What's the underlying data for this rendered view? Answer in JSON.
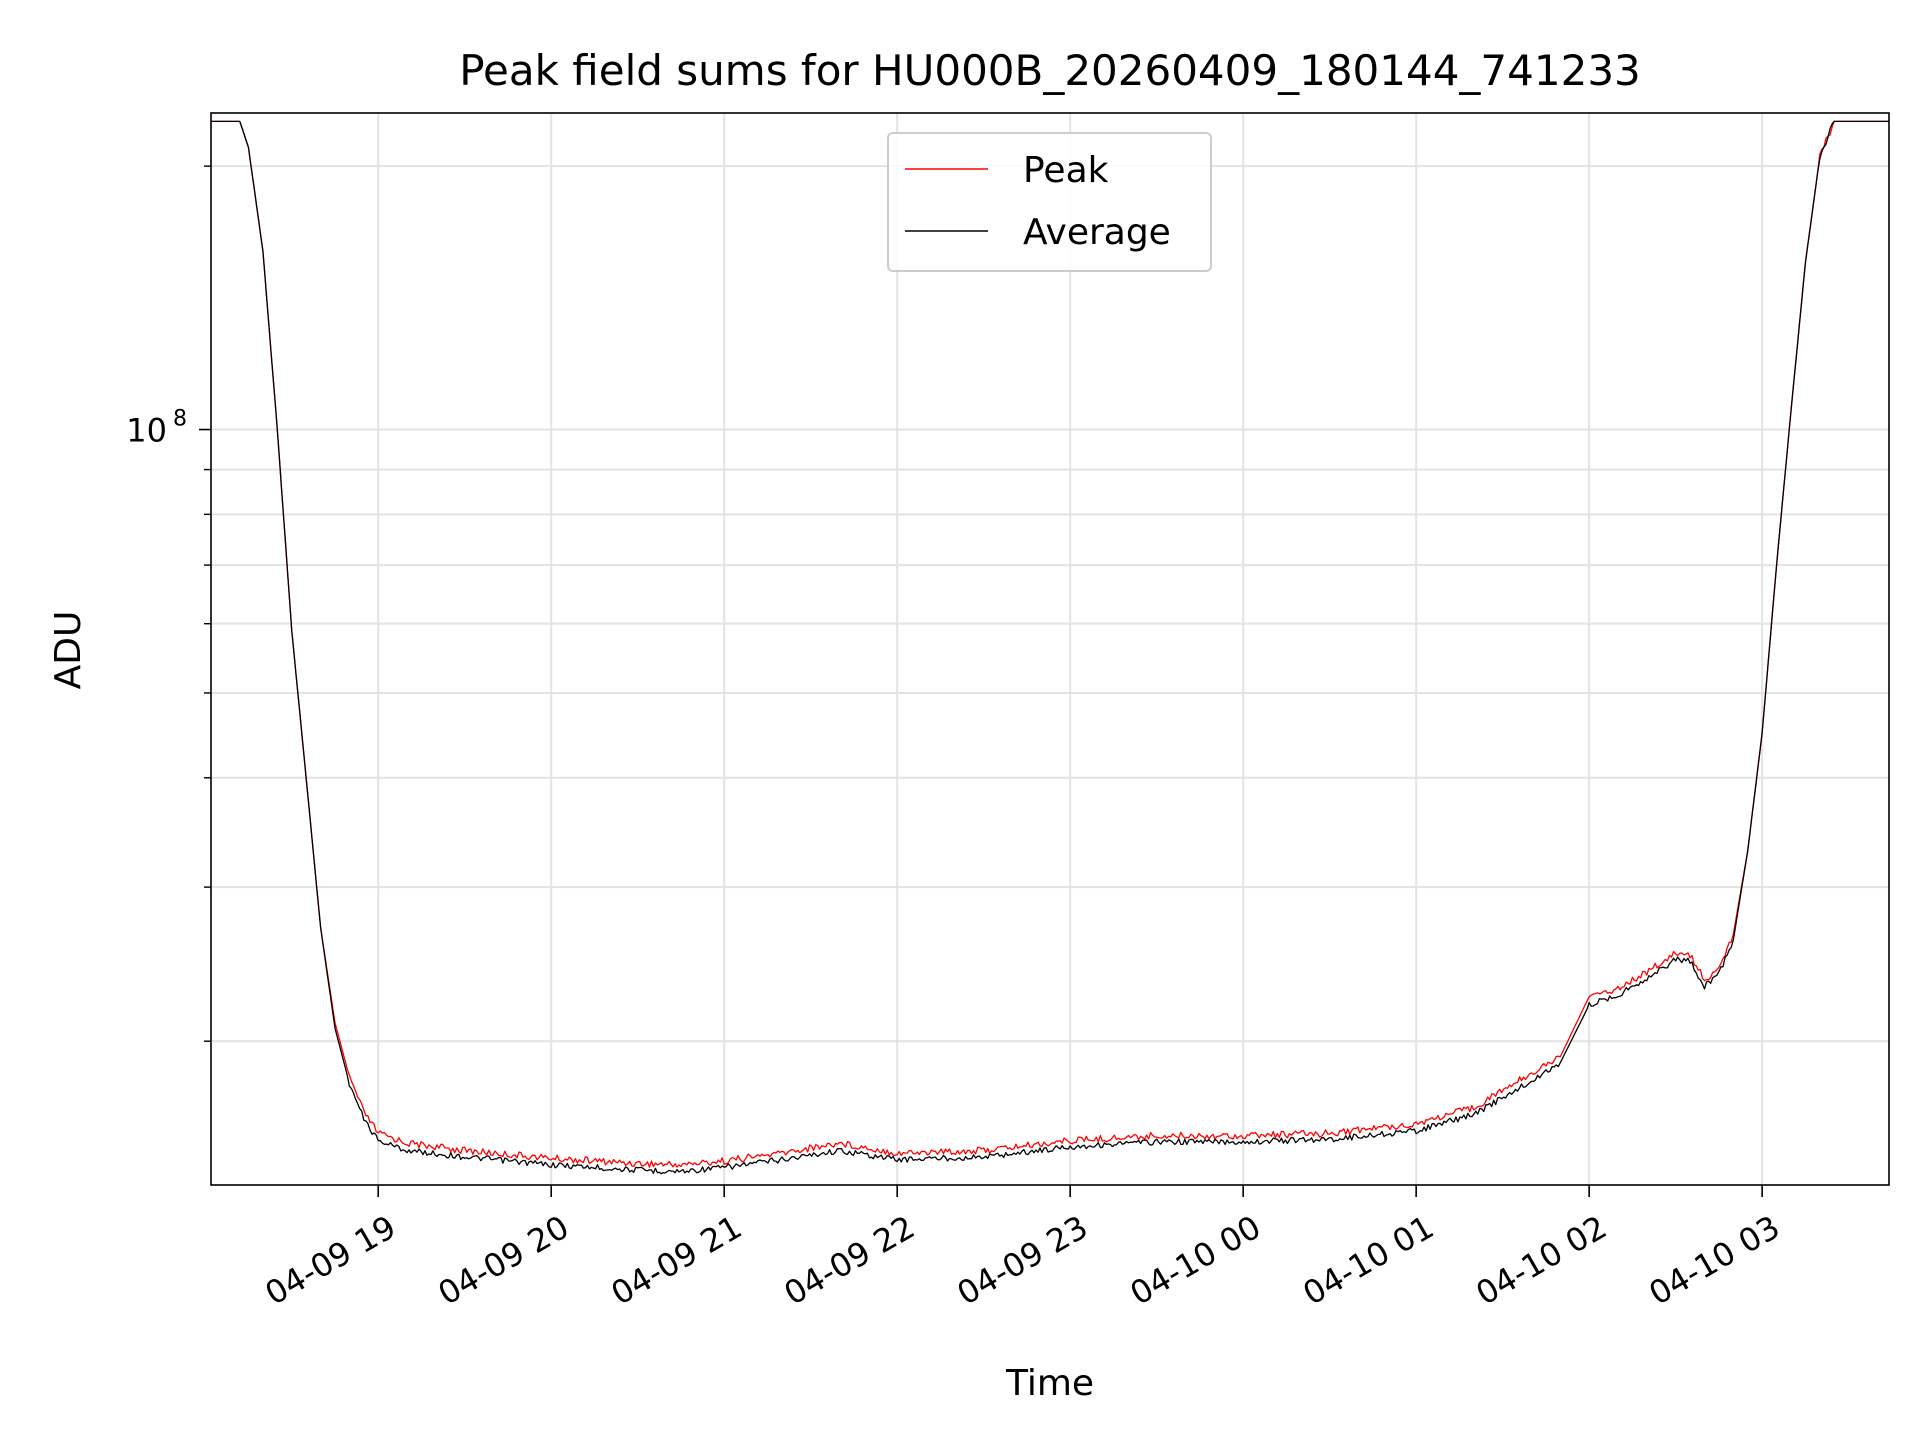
{
  "chart_data": {
    "type": "line",
    "title": "Peak field sums for HU000B_20260409_180144_741233",
    "xlabel": "Time",
    "ylabel": "ADU",
    "x_axis": "time",
    "x_tick_labels": [
      "04-09 19",
      "04-09 20",
      "04-09 21",
      "04-09 22",
      "04-09 23",
      "04-10 00",
      "04-10 01",
      "04-10 02",
      "04-10 03"
    ],
    "x_ticks": [
      "2026-04-09 19:00",
      "2026-04-09 20:00",
      "2026-04-09 21:00",
      "2026-04-09 22:00",
      "2026-04-09 23:00",
      "2026-04-10 00:00",
      "2026-04-10 01:00",
      "2026-04-10 02:00",
      "2026-04-10 03:00"
    ],
    "xlim": [
      "2026-04-09 18:02",
      "2026-04-10 03:44"
    ],
    "y_scale": "log",
    "ylim": [
      13700000,
      230000000
    ],
    "y_major_tick": {
      "value": 100000000,
      "label_base": "10",
      "label_exp": "8"
    },
    "y_minor_ticks": [
      20000000,
      30000000,
      40000000,
      50000000,
      60000000,
      70000000,
      80000000,
      90000000,
      200000000
    ],
    "grid": true,
    "legend": {
      "position": "top-center",
      "entries": [
        "Peak",
        "Average"
      ]
    },
    "series": [
      {
        "name": "Peak",
        "color": "#ff0000",
        "points": [
          [
            "2026-04-09 18:02",
            225000000
          ],
          [
            "2026-04-09 18:12",
            225000000
          ],
          [
            "2026-04-09 18:15",
            210000000
          ],
          [
            "2026-04-09 18:20",
            160000000
          ],
          [
            "2026-04-09 18:25",
            100000000
          ],
          [
            "2026-04-09 18:30",
            59000000
          ],
          [
            "2026-04-09 18:35",
            40000000
          ],
          [
            "2026-04-09 18:40",
            27000000
          ],
          [
            "2026-04-09 18:45",
            21000000
          ],
          [
            "2026-04-09 18:50",
            18200000
          ],
          [
            "2026-04-09 18:55",
            16600000
          ],
          [
            "2026-04-09 19:00",
            15700000
          ],
          [
            "2026-04-09 19:10",
            15300000
          ],
          [
            "2026-04-09 19:30",
            15000000
          ],
          [
            "2026-04-09 20:00",
            14700000
          ],
          [
            "2026-04-09 20:30",
            14500000
          ],
          [
            "2026-04-09 20:45",
            14450000
          ],
          [
            "2026-04-09 21:00",
            14600000
          ],
          [
            "2026-04-09 21:20",
            14900000
          ],
          [
            "2026-04-09 21:40",
            15300000
          ],
          [
            "2026-04-09 22:00",
            14900000
          ],
          [
            "2026-04-09 22:30",
            15000000
          ],
          [
            "2026-04-09 23:00",
            15400000
          ],
          [
            "2026-04-09 23:30",
            15600000
          ],
          [
            "2026-04-10 00:00",
            15600000
          ],
          [
            "2026-04-10 00:30",
            15700000
          ],
          [
            "2026-04-10 01:00",
            16100000
          ],
          [
            "2026-04-10 01:20",
            16800000
          ],
          [
            "2026-04-10 01:40",
            18400000
          ],
          [
            "2026-04-10 01:50",
            19200000
          ],
          [
            "2026-04-10 02:00",
            22500000
          ],
          [
            "2026-04-10 02:10",
            23000000
          ],
          [
            "2026-04-10 02:20",
            24000000
          ],
          [
            "2026-04-10 02:30",
            25200000
          ],
          [
            "2026-04-10 02:35",
            25100000
          ],
          [
            "2026-04-10 02:40",
            23500000
          ],
          [
            "2026-04-10 02:45",
            24200000
          ],
          [
            "2026-04-10 02:50",
            26500000
          ],
          [
            "2026-04-10 02:55",
            33000000
          ],
          [
            "2026-04-10 03:00",
            45000000
          ],
          [
            "2026-04-10 03:05",
            70000000
          ],
          [
            "2026-04-10 03:10",
            105000000
          ],
          [
            "2026-04-10 03:15",
            155000000
          ],
          [
            "2026-04-10 03:20",
            205000000
          ],
          [
            "2026-04-10 03:25",
            225000000
          ],
          [
            "2026-04-10 03:44",
            225000000
          ]
        ]
      },
      {
        "name": "Average",
        "color": "#000000",
        "points": [
          [
            "2026-04-09 18:02",
            225000000
          ],
          [
            "2026-04-09 18:12",
            225000000
          ],
          [
            "2026-04-09 18:15",
            210000000
          ],
          [
            "2026-04-09 18:20",
            160000000
          ],
          [
            "2026-04-09 18:25",
            100000000
          ],
          [
            "2026-04-09 18:30",
            59000000
          ],
          [
            "2026-04-09 18:35",
            40000000
          ],
          [
            "2026-04-09 18:40",
            27000000
          ],
          [
            "2026-04-09 18:45",
            20700000
          ],
          [
            "2026-04-09 18:50",
            17900000
          ],
          [
            "2026-04-09 18:55",
            16300000
          ],
          [
            "2026-04-09 19:00",
            15400000
          ],
          [
            "2026-04-09 19:10",
            15000000
          ],
          [
            "2026-04-09 19:30",
            14750000
          ],
          [
            "2026-04-09 20:00",
            14450000
          ],
          [
            "2026-04-09 20:30",
            14250000
          ],
          [
            "2026-04-09 20:45",
            14200000
          ],
          [
            "2026-04-09 21:00",
            14350000
          ],
          [
            "2026-04-09 21:20",
            14650000
          ],
          [
            "2026-04-09 21:40",
            15000000
          ],
          [
            "2026-04-09 22:00",
            14650000
          ],
          [
            "2026-04-09 22:30",
            14750000
          ],
          [
            "2026-04-09 23:00",
            15150000
          ],
          [
            "2026-04-09 23:30",
            15350000
          ],
          [
            "2026-04-10 00:00",
            15350000
          ],
          [
            "2026-04-10 00:30",
            15450000
          ],
          [
            "2026-04-10 01:00",
            15800000
          ],
          [
            "2026-04-10 01:20",
            16500000
          ],
          [
            "2026-04-10 01:40",
            18000000
          ],
          [
            "2026-04-10 01:50",
            18900000
          ],
          [
            "2026-04-10 02:00",
            22000000
          ],
          [
            "2026-04-10 02:10",
            22600000
          ],
          [
            "2026-04-10 02:20",
            23600000
          ],
          [
            "2026-04-10 02:30",
            24800000
          ],
          [
            "2026-04-10 02:35",
            24700000
          ],
          [
            "2026-04-10 02:40",
            23100000
          ],
          [
            "2026-04-10 02:45",
            23900000
          ],
          [
            "2026-04-10 02:50",
            26100000
          ],
          [
            "2026-04-10 02:55",
            33000000
          ],
          [
            "2026-04-10 03:00",
            45000000
          ],
          [
            "2026-04-10 03:05",
            70000000
          ],
          [
            "2026-04-10 03:10",
            105000000
          ],
          [
            "2026-04-10 03:15",
            155000000
          ],
          [
            "2026-04-10 03:20",
            205000000
          ],
          [
            "2026-04-10 03:25",
            225000000
          ],
          [
            "2026-04-10 03:44",
            225000000
          ]
        ]
      }
    ]
  }
}
